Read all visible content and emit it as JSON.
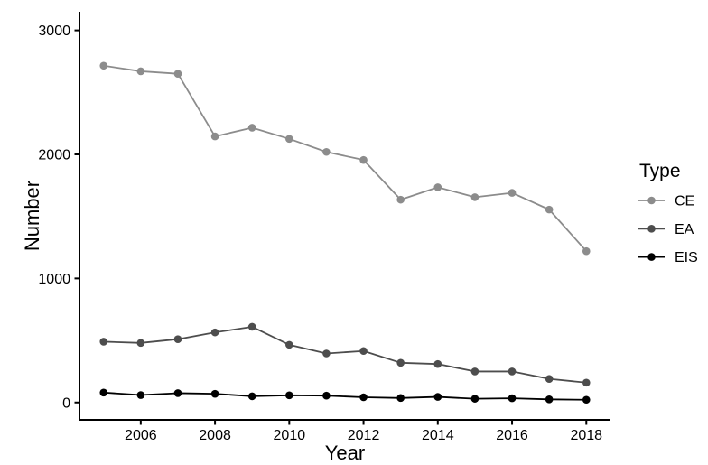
{
  "chart_data": {
    "type": "line",
    "title": "",
    "xlabel": "Year",
    "ylabel": "Number",
    "x": [
      2005,
      2006,
      2007,
      2008,
      2009,
      2010,
      2011,
      2012,
      2013,
      2014,
      2015,
      2016,
      2017,
      2018
    ],
    "series": [
      {
        "name": "CE",
        "color": "#8C8C8C",
        "values": [
          2715,
          2670,
          2650,
          2145,
          2215,
          2125,
          2020,
          1955,
          1635,
          1735,
          1655,
          1690,
          1555,
          1220
        ]
      },
      {
        "name": "EA",
        "color": "#4D4D4D",
        "values": [
          490,
          480,
          510,
          565,
          610,
          465,
          395,
          415,
          320,
          310,
          250,
          250,
          190,
          160
        ]
      },
      {
        "name": "EIS",
        "color": "#000000",
        "values": [
          80,
          60,
          75,
          70,
          50,
          58,
          55,
          42,
          36,
          45,
          30,
          34,
          25,
          22
        ]
      }
    ],
    "x_ticks": [
      2006,
      2008,
      2010,
      2012,
      2014,
      2016,
      2018
    ],
    "y_ticks": [
      0,
      1000,
      2000,
      3000
    ],
    "xlim": [
      2004.35,
      2018.65
    ],
    "ylim": [
      -140,
      3150
    ],
    "grid": false,
    "legend": {
      "title": "Type",
      "position": "right",
      "entries": [
        "CE",
        "EA",
        "EIS"
      ]
    },
    "colors": {
      "axis": "#000000",
      "background": "#FFFFFF"
    }
  }
}
